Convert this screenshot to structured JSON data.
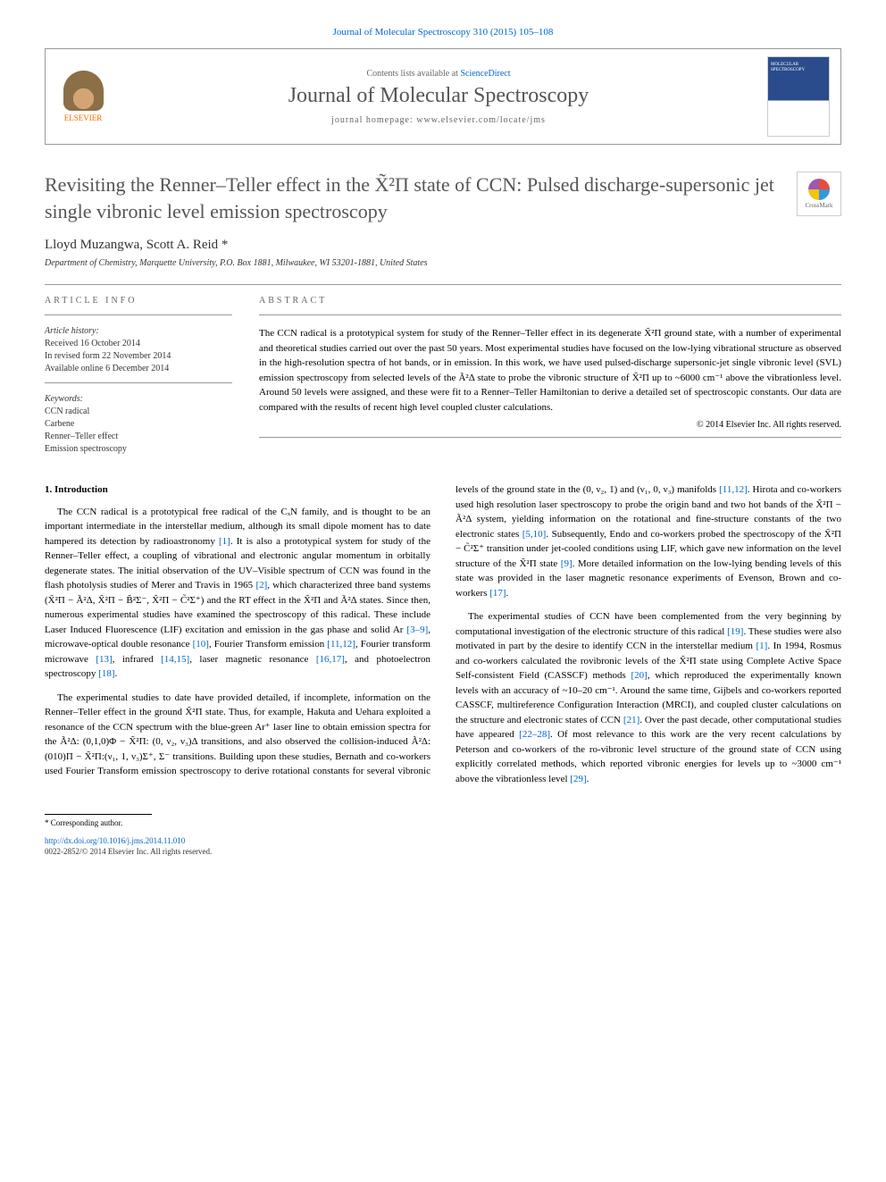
{
  "header": {
    "citation": "Journal of Molecular Spectroscopy 310 (2015) 105–108",
    "contents_prefix": "Contents lists available at ",
    "contents_link": "ScienceDirect",
    "journal_name": "Journal of Molecular Spectroscopy",
    "homepage_label": "journal homepage: www.elsevier.com/locate/jms",
    "publisher": "ELSEVIER",
    "cover_text": "MOLECULAR SPECTROSCOPY"
  },
  "crossmark": "CrossMark",
  "title": "Revisiting the Renner–Teller effect in the X̃²Π state of CCN: Pulsed discharge-supersonic jet single vibronic level emission spectroscopy",
  "authors": "Lloyd Muzangwa, Scott A. Reid *",
  "affiliation": "Department of Chemistry, Marquette University, P.O. Box 1881, Milwaukee, WI 53201-1881, United States",
  "info": {
    "heading": "ARTICLE INFO",
    "history_head": "Article history:",
    "received": "Received 16 October 2014",
    "revised": "In revised form 22 November 2014",
    "online": "Available online 6 December 2014",
    "keywords_head": "Keywords:",
    "kw1": "CCN radical",
    "kw2": "Carbene",
    "kw3": "Renner–Teller effect",
    "kw4": "Emission spectroscopy"
  },
  "abstract": {
    "heading": "ABSTRACT",
    "text": "The CCN radical is a prototypical system for study of the Renner–Teller effect in its degenerate X̃²Π ground state, with a number of experimental and theoretical studies carried out over the past 50 years. Most experimental studies have focused on the low-lying vibrational structure as observed in the high-resolution spectra of hot bands, or in emission. In this work, we have used pulsed-discharge supersonic-jet single vibronic level (SVL) emission spectroscopy from selected levels of the Ã²Δ state to probe the vibronic structure of X̃²Π up to ~6000 cm⁻¹ above the vibrationless level. Around 50 levels were assigned, and these were fit to a Renner–Teller Hamiltonian to derive a detailed set of spectroscopic constants. Our data are compared with the results of recent high level coupled cluster calculations.",
    "copyright": "© 2014 Elsevier Inc. All rights reserved."
  },
  "section1": {
    "heading": "1. Introduction",
    "p1_a": "The CCN radical is a prototypical free radical of the CₓN family, and is thought to be an important intermediate in the interstellar medium, although its small dipole moment has to date hampered its detection by radioastronomy ",
    "p1_ref1": "[1]",
    "p1_b": ". It is also a prototypical system for study of the Renner–Teller effect, a coupling of vibrational and electronic angular momentum in orbitally degenerate states. The initial observation of the UV–Visible spectrum of CCN was found in the flash photolysis studies of Merer and Travis in 1965 ",
    "p1_ref2": "[2]",
    "p1_c": ", which characterized three band systems (X̃²Π − Ã²Δ, X̃²Π − B̃²Σ⁻, X̃²Π − C̃²Σ⁺) and the RT effect in the X̃²Π and Ã²Δ states. Since then, numerous experimental studies have examined the spectroscopy of this radical. These include Laser Induced Fluorescence (LIF) excitation and emission in the gas phase and solid Ar ",
    "p1_ref3": "[3–9]",
    "p1_d": ", microwave-optical double resonance ",
    "p1_ref4": "[10]",
    "p1_e": ", Fourier Transform emission ",
    "p1_ref5": "[11,12]",
    "p1_f": ", Fourier transform microwave ",
    "p1_ref6": "[13]",
    "p1_g": ", infrared ",
    "p1_ref7": "[14,15]",
    "p1_h": ", laser magnetic resonance ",
    "p1_ref8": "[16,17]",
    "p1_i": ", and photoelectron spectroscopy ",
    "p1_ref9": "[18]",
    "p1_j": ".",
    "p2_a": "The experimental studies to date have provided detailed, if incomplete, information on the Renner–Teller effect in the ground X̃²Π state. Thus, for example, Hakuta and Uehara exploited a resonance of the CCN spectrum with the blue-green Ar⁺ laser line to obtain emission spectra for the Ã²Δ: (0,1,0)Φ − X̃²Π: (0, ν₂, ν₃)Δ transitions, and also observed the collision-induced Ã²Δ:(010)Π − X̃²Π:(ν₁, 1, ν₃)Σ⁺, Σ⁻ transitions. Building upon these studies, Bernath and co-workers used Fourier Transform ",
    "p2_b": "emission spectroscopy to derive rotational constants for several vibronic levels of the ground state in the (0, ν₂, 1) and (ν₁, 0, ν₃) manifolds ",
    "p2_ref1": "[11,12]",
    "p2_c": ". Hirota and co-workers used high resolution laser spectroscopy to probe the origin band and two hot bands of the X̃²Π − Ã²Δ system, yielding information on the rotational and fine-structure constants of the two electronic states ",
    "p2_ref2": "[5,10]",
    "p2_d": ". Subsequently, Endo and co-workers probed the spectroscopy of the X̃²Π − C̃²Σ⁺ transition under jet-cooled conditions using LIF, which gave new information on the level structure of the X̃²Π state ",
    "p2_ref3": "[9]",
    "p2_e": ". More detailed information on the low-lying bending levels of this state was provided in the laser magnetic resonance experiments of Evenson, Brown and co-workers ",
    "p2_ref4": "[17]",
    "p2_f": ".",
    "p3_a": "The experimental studies of CCN have been complemented from the very beginning by computational investigation of the electronic structure of this radical ",
    "p3_ref1": "[19]",
    "p3_b": ". These studies were also motivated in part by the desire to identify CCN in the interstellar medium ",
    "p3_ref2": "[1]",
    "p3_c": ". In 1994, Rosmus and co-workers calculated the rovibronic levels of the X̃²Π state using Complete Active Space Self-consistent Field (CASSCF) methods ",
    "p3_ref3": "[20]",
    "p3_d": ", which reproduced the experimentally known levels with an accuracy of ~10–20 cm⁻¹. Around the same time, Gijbels and co-workers reported CASSCF, multireference Configuration Interaction (MRCI), and coupled cluster calculations on the structure and electronic states of CCN ",
    "p3_ref4": "[21]",
    "p3_e": ". Over the past decade, other computational studies have appeared ",
    "p3_ref5": "[22–28]",
    "p3_f": ". Of most relevance to this work are the very recent calculations by Peterson and co-workers of the ro-vibronic level structure of the ground state of CCN using explicitly correlated methods, which reported vibronic energies for levels up to ~3000 cm⁻¹ above the vibrationless level ",
    "p3_ref6": "[29]",
    "p3_g": "."
  },
  "footer": {
    "corr": "* Corresponding author.",
    "doi": "http://dx.doi.org/10.1016/j.jms.2014.11.010",
    "issn": "0022-2852/© 2014 Elsevier Inc. All rights reserved."
  },
  "colors": {
    "link": "#0066cc",
    "text": "#000000",
    "gray": "#555555",
    "orange": "#ff6600"
  }
}
